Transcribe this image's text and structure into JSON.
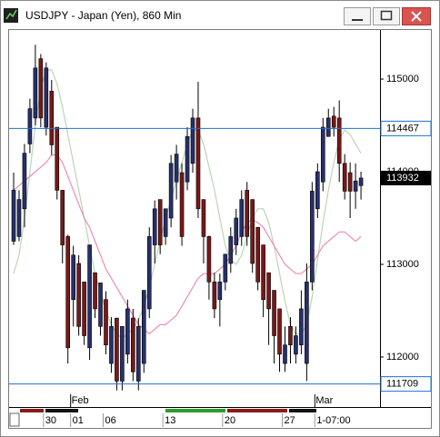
{
  "chart_data": {
    "type": "candlestick",
    "title": "USDJPY - Japan (Yen), 860 Min",
    "ylim": [
      111470,
      115530
    ],
    "yticks": [
      112000,
      113000,
      114000,
      115000
    ],
    "levels": [
      114467,
      111709
    ],
    "up_color": "#27306b",
    "down_color": "#7a1818",
    "categories": [
      null,
      null,
      null,
      null,
      null,
      null,
      "30",
      null,
      null,
      null,
      null,
      "01",
      null,
      null,
      null,
      null,
      null,
      "06",
      null,
      null,
      null,
      null,
      null,
      null,
      null,
      null,
      null,
      null,
      "13",
      null,
      null,
      null,
      null,
      null,
      null,
      null,
      null,
      null,
      null,
      "20",
      null,
      null,
      null,
      null,
      null,
      null,
      null,
      null,
      null,
      null,
      "27",
      null,
      null,
      null,
      null,
      null,
      "1-07:00",
      null,
      null,
      null,
      null,
      null,
      null,
      null,
      null
    ],
    "months": [
      null,
      null,
      null,
      null,
      null,
      null,
      null,
      null,
      null,
      null,
      null,
      "Feb",
      null,
      null,
      null,
      null,
      null,
      null,
      null,
      null,
      null,
      null,
      null,
      null,
      null,
      null,
      null,
      null,
      null,
      null,
      null,
      null,
      null,
      null,
      null,
      null,
      null,
      null,
      null,
      null,
      null,
      null,
      null,
      null,
      null,
      null,
      null,
      null,
      null,
      null,
      null,
      null,
      null,
      null,
      null,
      null,
      "Mar",
      null,
      null,
      null,
      null,
      null,
      null,
      null,
      null
    ],
    "open": [
      113250,
      113300,
      113600,
      114300,
      114580,
      115220,
      114480,
      114870,
      114480,
      113800,
      113300,
      112620,
      113010,
      112810,
      112100,
      112910,
      112330,
      112620,
      111930,
      112420,
      111740,
      112030,
      112420,
      111740,
      111930,
      112520,
      113210,
      113700,
      113300,
      113500,
      113890,
      113990,
      113890,
      114090,
      114580,
      113700,
      113300,
      112810,
      112620,
      112810,
      113010,
      113210,
      113300,
      113800,
      113700,
      113400,
      113210,
      112910,
      112720,
      112520,
      111930,
      112330,
      112030,
      112130,
      111930,
      112810,
      113600,
      113890,
      114380,
      114600,
      114580,
      114090,
      113990,
      113790,
      113850
    ],
    "high": [
      113990,
      113800,
      114300,
      114790,
      115370,
      115270,
      115180,
      114990,
      114480,
      113800,
      113320,
      113200,
      113100,
      112800,
      113210,
      112910,
      112800,
      112710,
      112430,
      112420,
      112330,
      112620,
      112520,
      112420,
      112720,
      113400,
      113690,
      113700,
      113600,
      114180,
      114290,
      114090,
      114480,
      114680,
      114970,
      113700,
      113310,
      112910,
      112900,
      113110,
      113400,
      113600,
      113800,
      113890,
      113700,
      113400,
      113200,
      112910,
      112720,
      112520,
      112330,
      112430,
      112330,
      112720,
      113010,
      113890,
      114090,
      114580,
      114680,
      114700,
      114770,
      114190,
      114100,
      114090,
      114000
    ],
    "low": [
      113210,
      113250,
      113400,
      114200,
      114500,
      114480,
      114390,
      114180,
      113700,
      113010,
      111930,
      112330,
      112230,
      112130,
      111970,
      112420,
      112230,
      112030,
      111830,
      111640,
      111640,
      111930,
      111740,
      111640,
      111830,
      112420,
      113010,
      113110,
      113210,
      113400,
      113700,
      113200,
      113800,
      113990,
      113500,
      113010,
      112620,
      112420,
      112330,
      112720,
      112910,
      113100,
      113200,
      113200,
      112910,
      112720,
      112430,
      112130,
      111930,
      111840,
      111840,
      111930,
      111930,
      112030,
      111740,
      112720,
      113500,
      113790,
      114380,
      114380,
      113890,
      113700,
      113500,
      113600,
      113700
    ],
    "close": [
      113800,
      113700,
      114200,
      114680,
      115120,
      114580,
      115120,
      114290,
      113800,
      113210,
      112100,
      113100,
      112330,
      112230,
      113210,
      112520,
      112800,
      112130,
      112330,
      111740,
      112330,
      112520,
      111840,
      112330,
      112720,
      113300,
      113600,
      113210,
      113600,
      114090,
      114190,
      113300,
      114380,
      114580,
      113600,
      113300,
      112810,
      112520,
      112810,
      113110,
      113300,
      113500,
      113700,
      113300,
      113010,
      112810,
      112620,
      112520,
      112230,
      112030,
      112130,
      112130,
      112230,
      112520,
      112810,
      113790,
      114000,
      114480,
      114580,
      114480,
      114090,
      113790,
      113790,
      113900,
      113932
    ],
    "series": [
      {
        "color": "#b9d6b4",
        "values": [
          112900,
          113100,
          113500,
          114000,
          114500,
          114900,
          115100,
          115100,
          114950,
          114700,
          114400,
          114100,
          113800,
          113500,
          113200,
          112900,
          112700,
          112500,
          112350,
          112250,
          112200,
          112250,
          112300,
          112400,
          112550,
          112750,
          113000,
          113250,
          113500,
          113700,
          113900,
          114100,
          114300,
          114450,
          114450,
          114300,
          114050,
          113800,
          113500,
          113200,
          113050,
          113000,
          113100,
          113300,
          113500,
          113600,
          113600,
          113450,
          113200,
          112900,
          112600,
          112350,
          112250,
          112250,
          112350,
          112650,
          113050,
          113450,
          113800,
          114100,
          114350,
          114450,
          114400,
          114300,
          114200
        ]
      },
      {
        "color": "#ef8bb5",
        "values": [
          113800,
          113850,
          113900,
          113950,
          114000,
          114050,
          114100,
          114180,
          114180,
          114100,
          113950,
          113800,
          113650,
          113500,
          113400,
          113250,
          113100,
          112950,
          112850,
          112750,
          112650,
          112550,
          112450,
          112350,
          112300,
          112250,
          112300,
          112350,
          112350,
          112400,
          112450,
          112550,
          112650,
          112750,
          112850,
          112900,
          112900,
          112900,
          112950,
          113000,
          113100,
          113200,
          113350,
          113450,
          113480,
          113450,
          113400,
          113300,
          113200,
          113100,
          113000,
          112950,
          112900,
          112900,
          112950,
          113000,
          113100,
          113200,
          113250,
          113300,
          113350,
          113350,
          113300,
          113250,
          113300
        ]
      }
    ]
  }
}
